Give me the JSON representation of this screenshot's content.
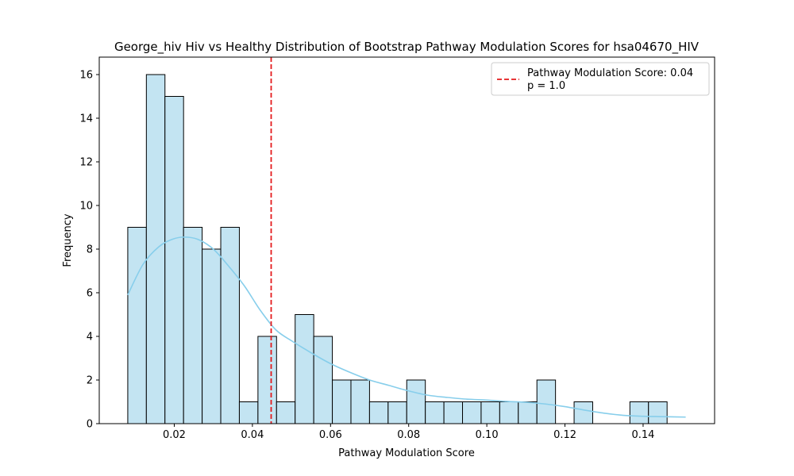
{
  "chart_data": {
    "type": "bar",
    "title": "George_hiv Hiv vs Healthy Distribution of Bootstrap Pathway Modulation Scores for hsa04670_HIV",
    "xlabel": "Pathway Modulation Score",
    "ylabel": "Frequency",
    "xlim": [
      0.0008,
      0.1583
    ],
    "ylim": [
      0,
      16.8
    ],
    "xticks": [
      0.02,
      0.04,
      0.06,
      0.08,
      0.1,
      0.12,
      0.14
    ],
    "xtick_labels": [
      "0.02",
      "0.04",
      "0.06",
      "0.08",
      "0.10",
      "0.12",
      "0.14"
    ],
    "yticks": [
      0,
      2,
      4,
      6,
      8,
      10,
      12,
      14,
      16
    ],
    "ytick_labels": [
      "0",
      "2",
      "4",
      "6",
      "8",
      "10",
      "12",
      "14",
      "16"
    ],
    "bin_start": 0.0081,
    "bin_width": 0.00476,
    "counts": [
      9,
      16,
      15,
      9,
      8,
      9,
      1,
      4,
      1,
      5,
      4,
      2,
      2,
      1,
      1,
      2,
      1,
      1,
      1,
      1,
      1,
      1,
      2,
      0,
      1,
      0,
      0,
      1,
      1,
      0
    ],
    "bar_color": "#c3e4f2",
    "bar_edge_color": "#000000",
    "kde": {
      "color": "#87ceeb",
      "x": [
        0.0081,
        0.012,
        0.016,
        0.0195,
        0.0225,
        0.026,
        0.03,
        0.034,
        0.038,
        0.042,
        0.046,
        0.05,
        0.055,
        0.06,
        0.065,
        0.07,
        0.075,
        0.08,
        0.085,
        0.09,
        0.095,
        0.1,
        0.105,
        0.11,
        0.115,
        0.12,
        0.125,
        0.13,
        0.135,
        0.14,
        0.145,
        0.1509
      ],
      "y": [
        5.9,
        7.3,
        8.1,
        8.45,
        8.55,
        8.45,
        8.0,
        7.2,
        6.3,
        5.2,
        4.3,
        3.8,
        3.25,
        2.75,
        2.35,
        2.0,
        1.75,
        1.5,
        1.3,
        1.2,
        1.12,
        1.08,
        1.02,
        0.98,
        0.9,
        0.78,
        0.62,
        0.48,
        0.38,
        0.34,
        0.32,
        0.3
      ]
    },
    "observed_line": {
      "x": 0.0448,
      "color": "#e41a1c"
    },
    "legend": {
      "position": "top-right",
      "line1": "Pathway Modulation Score: 0.04",
      "line2": "p = 1.0"
    }
  }
}
